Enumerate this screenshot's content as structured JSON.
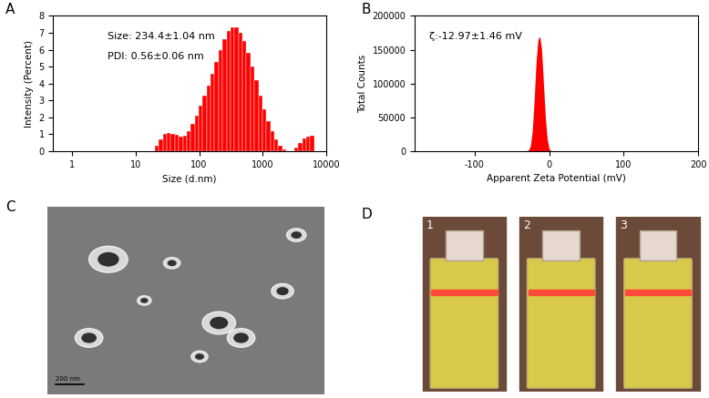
{
  "chart_data": [
    {
      "type": "histogram",
      "panel_label": "A",
      "x_label": "Size (d.nm)",
      "y_label": "Intensity (Percent)",
      "annotations": [
        "Size: 234.4±1.04 nm",
        "PDI: 0.56±0.06 nm"
      ],
      "bins": [
        20.0,
        23.1,
        26.7,
        30.8,
        35.6,
        41.1,
        47.5,
        55.0,
        63.4,
        73.3,
        84.7,
        97.9,
        113.2,
        130.6,
        151.0,
        174.6,
        201.8,
        233.3,
        269.2,
        311.2,
        359.8,
        415.9,
        480.8,
        554.6,
        641.2,
        741.3,
        857.0,
        990.8,
        1142.9,
        1321.3,
        1527.6,
        1766.0,
        2041.7,
        2355.0,
        2722.7,
        3147.7,
        3639.1,
        4207.3,
        4852.8,
        5610.5,
        6486.3
      ],
      "counts": [
        0.3,
        0.7,
        1.0,
        1.1,
        1.05,
        0.95,
        0.85,
        0.9,
        1.2,
        1.6,
        2.1,
        2.7,
        3.3,
        3.9,
        4.6,
        5.3,
        6.0,
        6.6,
        7.1,
        7.3,
        7.3,
        7.0,
        6.5,
        5.8,
        5.0,
        4.2,
        3.3,
        2.5,
        1.8,
        1.2,
        0.7,
        0.35,
        0.1,
        0.0,
        0.0,
        0.2,
        0.5,
        0.75,
        0.85,
        0.9
      ],
      "color": "#ff0000",
      "log": "x",
      "xlim": [
        0.5,
        10000
      ],
      "xticks": [
        1,
        10,
        100,
        1000,
        10000
      ],
      "ylim": [
        0,
        8
      ],
      "yticks": [
        0,
        1,
        2,
        3,
        4,
        5,
        6,
        7,
        8
      ],
      "grid": false
    },
    {
      "type": "area",
      "panel_label": "B",
      "x_label": "Apparent Zeta Potential (mV)",
      "y_label": "Total Counts",
      "annotations": [
        "ζ:-12.97±1.46 mV"
      ],
      "x": [
        -30,
        -27.5,
        -25,
        -22.5,
        -20,
        -17.5,
        -15,
        -12.5,
        -10,
        -7.5,
        -5,
        -2.5,
        0,
        2.5
      ],
      "values": [
        0,
        2000,
        8000,
        30000,
        75000,
        130000,
        165000,
        170000,
        150000,
        100000,
        50000,
        18000,
        4000,
        0
      ],
      "color": "#ff0000",
      "xlim": [
        -180,
        200
      ],
      "xticks": [
        -100,
        0,
        100,
        200
      ],
      "ylim": [
        0,
        200000
      ],
      "yticks": [
        0,
        50000,
        100000,
        150000,
        200000
      ],
      "grid": false
    }
  ],
  "images": [
    {
      "panel_label": "C",
      "scale_bar": "200 nm"
    },
    {
      "panel_label": "D",
      "vials": [
        "1",
        "2",
        "3"
      ]
    }
  ]
}
